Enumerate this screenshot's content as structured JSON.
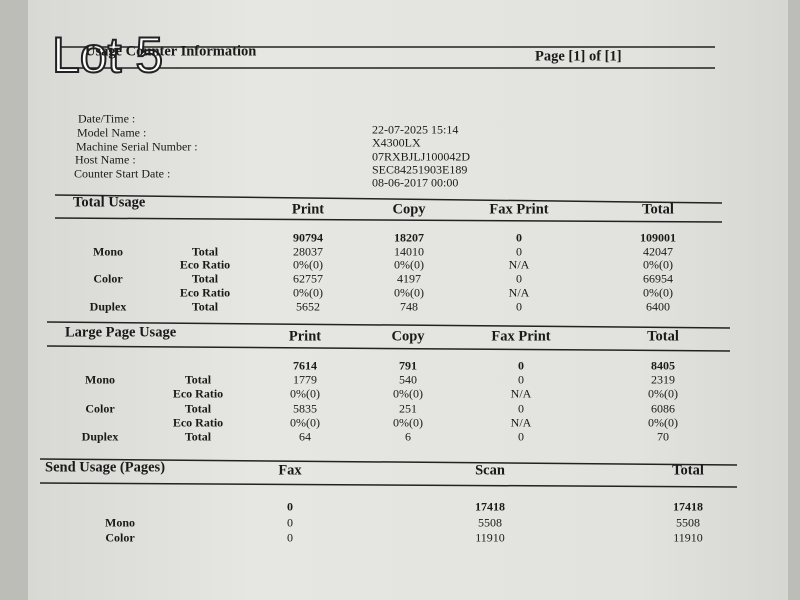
{
  "overlay": "Lot 5",
  "header": {
    "title": "Usage Counter Information",
    "page": "Page [1] of [1]"
  },
  "info": {
    "labels": [
      "Date/Time :",
      "Model Name :",
      "Machine Serial Number :",
      "Host Name :",
      "Counter Start Date :"
    ],
    "values": [
      "22-07-2025 15:14",
      "X4300LX",
      "07RXBJLJ100042D",
      "SEC84251903E189",
      "08-06-2017 00:00"
    ]
  },
  "sections": [
    {
      "title": "Total Usage",
      "columns": [
        "Print",
        "Copy",
        "Fax Print",
        "Total"
      ],
      "rows": [
        {
          "cells": [
            "90794",
            "18207",
            "0",
            "109001"
          ]
        },
        {
          "group": "Mono",
          "label": "Total",
          "cells": [
            "28037",
            "14010",
            "0",
            "42047"
          ]
        },
        {
          "label": "Eco Ratio",
          "cells": [
            "0%(0)",
            "0%(0)",
            "N/A",
            "0%(0)"
          ]
        },
        {
          "group": "Color",
          "label": "Total",
          "cells": [
            "62757",
            "4197",
            "0",
            "66954"
          ]
        },
        {
          "label": "Eco Ratio",
          "cells": [
            "0%(0)",
            "0%(0)",
            "N/A",
            "0%(0)"
          ]
        },
        {
          "group": "Duplex",
          "label": "Total",
          "cells": [
            "5652",
            "748",
            "0",
            "6400"
          ]
        }
      ]
    },
    {
      "title": "Large Page Usage",
      "columns": [
        "Print",
        "Copy",
        "Fax Print",
        "Total"
      ],
      "rows": [
        {
          "cells": [
            "7614",
            "791",
            "0",
            "8405"
          ]
        },
        {
          "group": "Mono",
          "label": "Total",
          "cells": [
            "1779",
            "540",
            "0",
            "2319"
          ]
        },
        {
          "label": "Eco Ratio",
          "cells": [
            "0%(0)",
            "0%(0)",
            "N/A",
            "0%(0)"
          ]
        },
        {
          "group": "Color",
          "label": "Total",
          "cells": [
            "5835",
            "251",
            "0",
            "6086"
          ]
        },
        {
          "label": "Eco Ratio",
          "cells": [
            "0%(0)",
            "0%(0)",
            "N/A",
            "0%(0)"
          ]
        },
        {
          "group": "Duplex",
          "label": "Total",
          "cells": [
            "64",
            "6",
            "0",
            "70"
          ]
        }
      ]
    },
    {
      "title": "Send Usage (Pages)",
      "columns": [
        "Fax",
        "Scan",
        "Total"
      ],
      "rows": [
        {
          "cells": [
            "0",
            "17418",
            "17418"
          ]
        },
        {
          "group": "Mono",
          "cells": [
            "0",
            "5508",
            "5508"
          ]
        },
        {
          "group": "Color",
          "cells": [
            "0",
            "11910",
            "11910"
          ]
        }
      ]
    }
  ]
}
